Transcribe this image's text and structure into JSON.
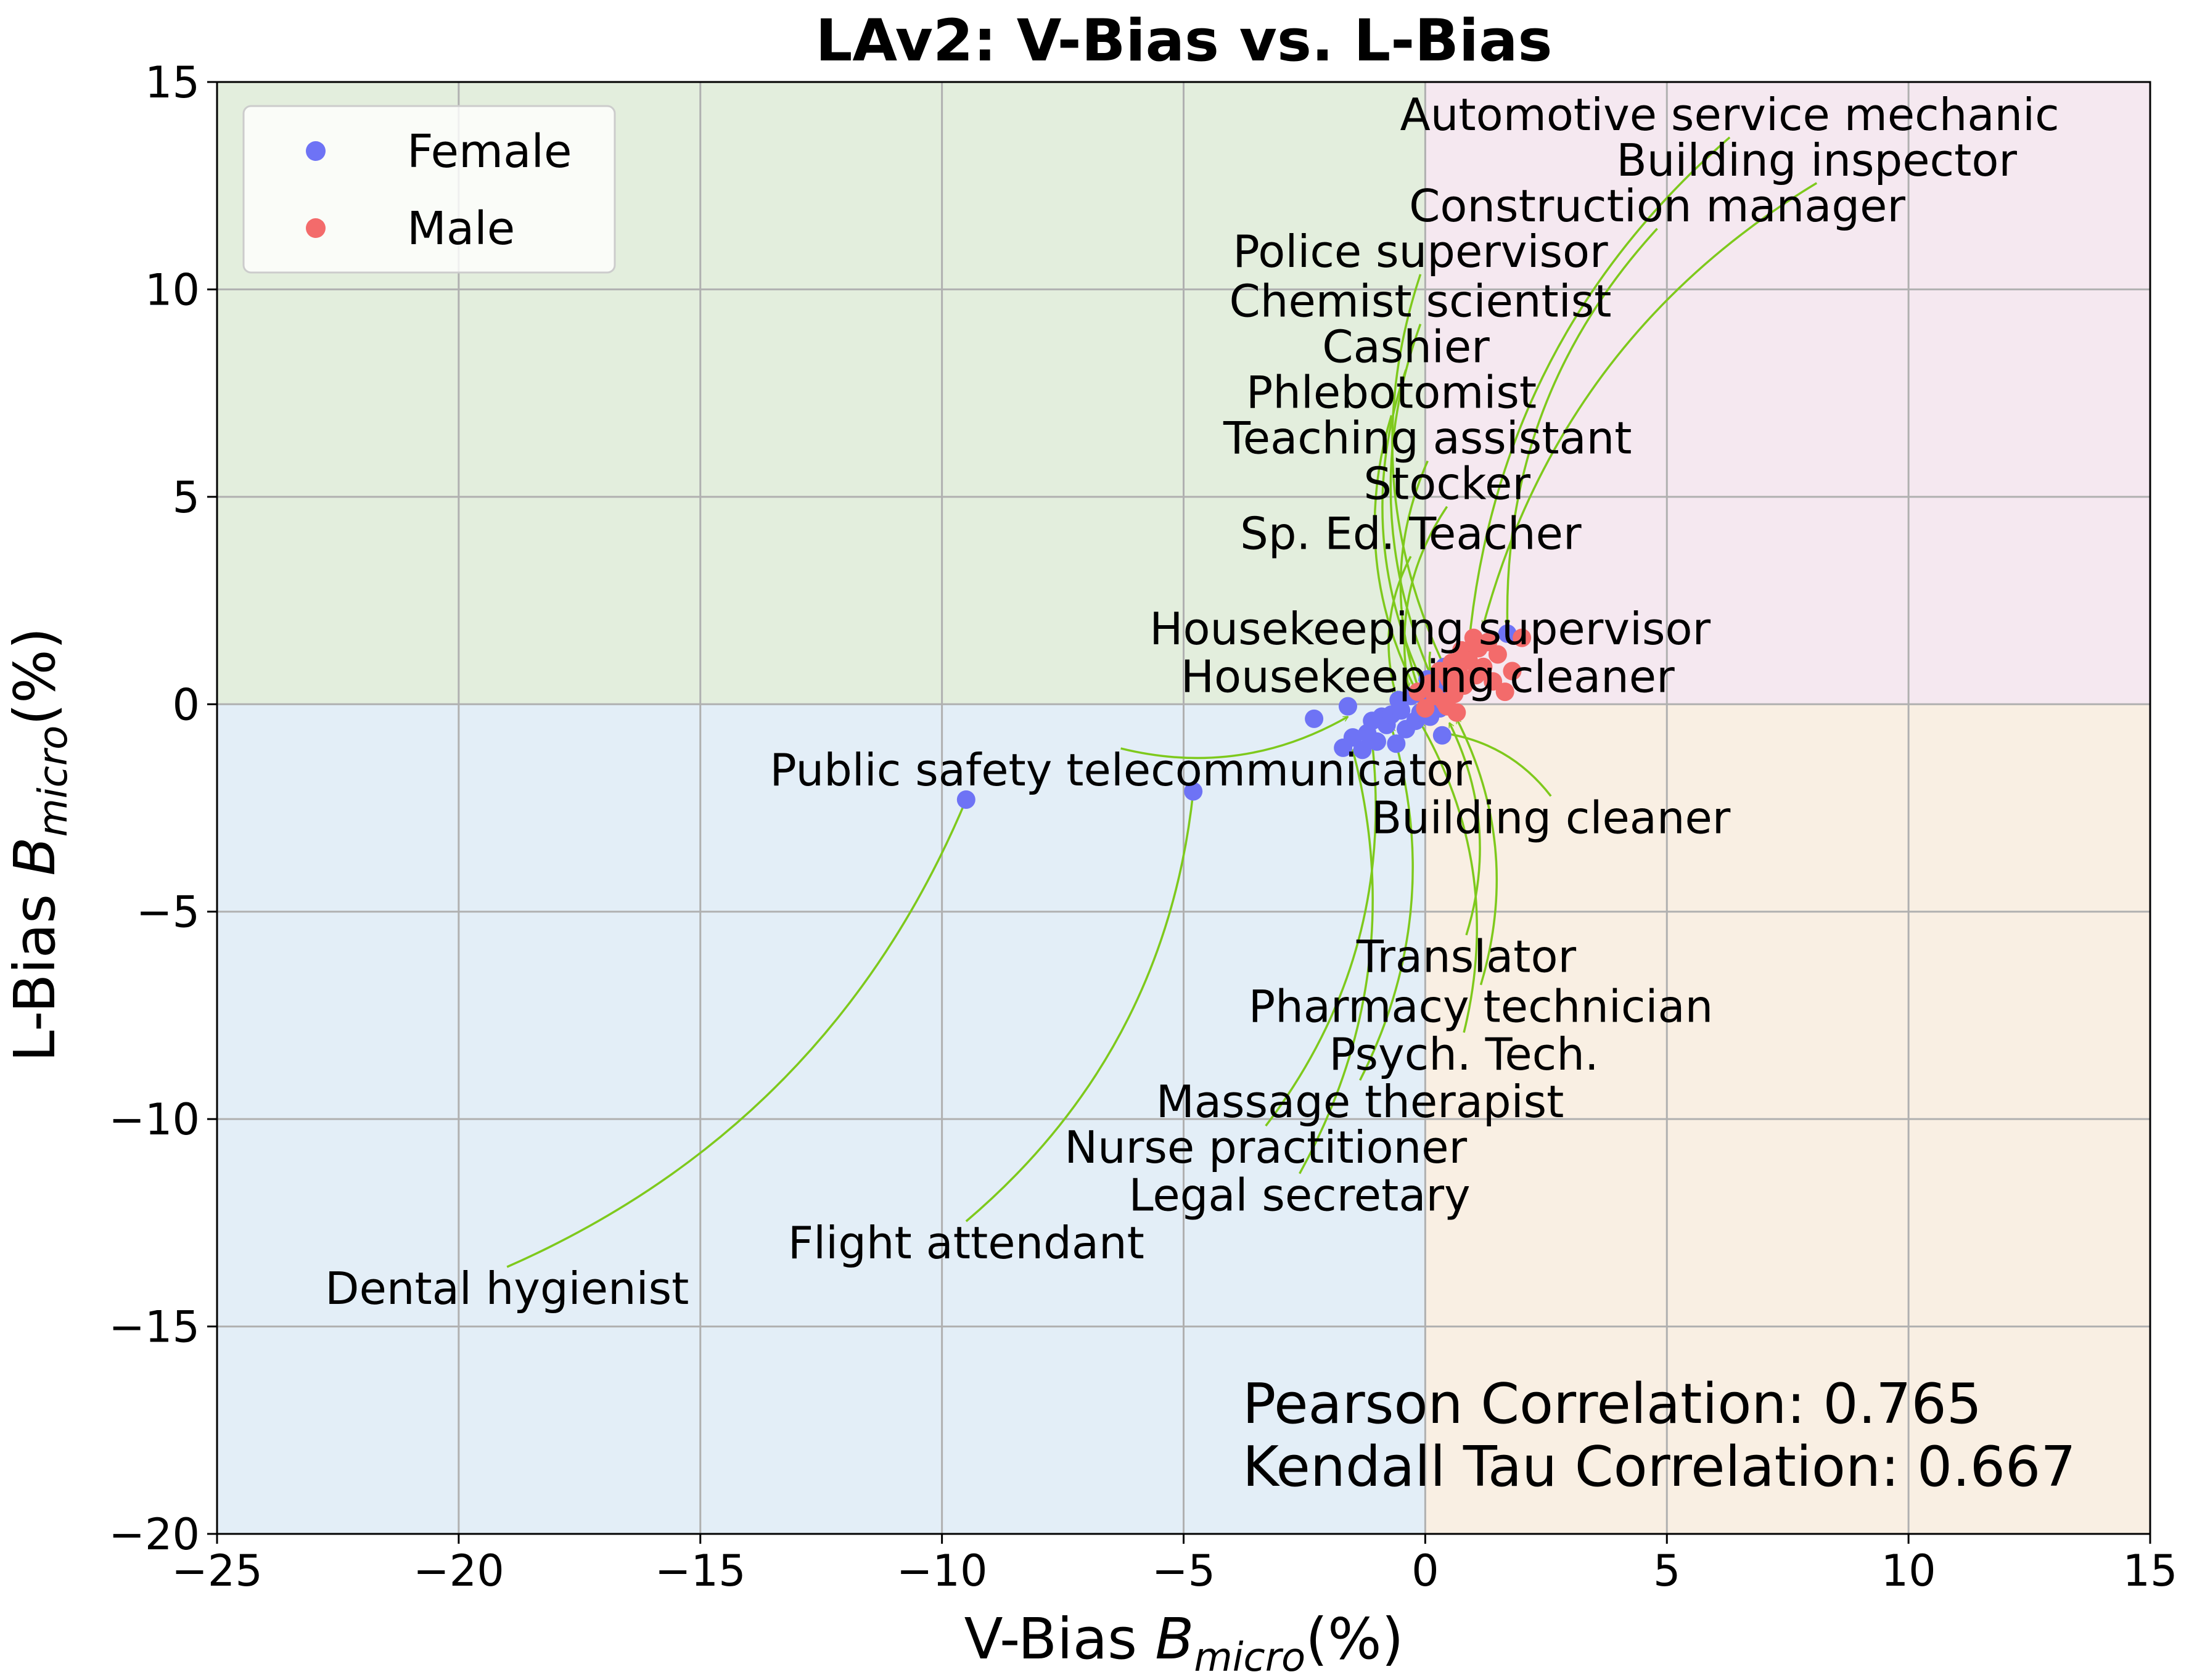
{
  "chart_data": {
    "type": "scatter",
    "title": "LAv2: V-Bias vs. L-Bias",
    "xlabel": "V-Bias",
    "xlabel_math": "B",
    "xlabel_sub": "micro",
    "xlabel_unit": "(%)",
    "ylabel": "L-Bias",
    "ylabel_math": "B",
    "ylabel_sub": "micro",
    "ylabel_unit": "(%)",
    "xlim": [
      -25,
      15
    ],
    "ylim": [
      -20,
      15
    ],
    "xticks": [
      -25,
      -20,
      -15,
      -10,
      -5,
      0,
      5,
      10,
      15
    ],
    "yticks": [
      -20,
      -15,
      -10,
      -5,
      0,
      5,
      10,
      15
    ],
    "xtick_labels": [
      "−25",
      "−20",
      "−15",
      "−10",
      "−5",
      "0",
      "5",
      "10",
      "15"
    ],
    "ytick_labels": [
      "−20",
      "−15",
      "−10",
      "−5",
      "0",
      "5",
      "10",
      "15"
    ],
    "grid": true,
    "legend_position": "top-left",
    "quadrant_colors": {
      "top_left": "#e3eedd",
      "top_right": "#f5e8f0",
      "bottom_left": "#e3eef7",
      "bottom_right": "#f9efe3"
    },
    "arrow_color": "#7ec91c",
    "series": [
      {
        "name": "Female",
        "color": "#6e73f5",
        "points": [
          [
            -9.5,
            -2.3
          ],
          [
            -4.8,
            -2.1
          ],
          [
            -2.3,
            -0.35
          ],
          [
            -1.6,
            -0.05
          ],
          [
            -1.7,
            -1.05
          ],
          [
            -1.5,
            -0.8
          ],
          [
            -1.3,
            -1.1
          ],
          [
            -1.2,
            -0.7
          ],
          [
            -1.0,
            -0.9
          ],
          [
            -0.9,
            -0.3
          ],
          [
            -0.8,
            -0.5
          ],
          [
            -0.7,
            -0.25
          ],
          [
            -0.6,
            -0.95
          ],
          [
            -0.5,
            -0.15
          ],
          [
            -0.4,
            -0.6
          ],
          [
            -0.3,
            0.2
          ],
          [
            -0.2,
            -0.4
          ],
          [
            -0.1,
            -0.2
          ],
          [
            0.0,
            0.15
          ],
          [
            0.1,
            -0.3
          ],
          [
            0.2,
            0.5
          ],
          [
            0.3,
            -0.1
          ],
          [
            0.4,
            0.9
          ],
          [
            0.5,
            0.35
          ],
          [
            0.6,
            0.7
          ],
          [
            0.35,
            -0.75
          ],
          [
            1.7,
            1.7
          ],
          [
            -1.1,
            -0.4
          ],
          [
            -0.55,
            0.1
          ],
          [
            0.05,
            0.6
          ]
        ]
      },
      {
        "name": "Male",
        "color": "#f36b6b",
        "points": [
          [
            -0.15,
            0.3
          ],
          [
            0.0,
            -0.1
          ],
          [
            0.1,
            0.5
          ],
          [
            0.2,
            0.2
          ],
          [
            0.3,
            0.8
          ],
          [
            0.4,
            0.05
          ],
          [
            0.5,
            0.6
          ],
          [
            0.55,
            1.0
          ],
          [
            0.6,
            0.25
          ],
          [
            0.7,
            0.75
          ],
          [
            0.75,
            1.3
          ],
          [
            0.8,
            0.45
          ],
          [
            0.9,
            1.05
          ],
          [
            1.0,
            1.6
          ],
          [
            1.05,
            0.7
          ],
          [
            1.1,
            1.35
          ],
          [
            1.2,
            0.9
          ],
          [
            1.3,
            1.5
          ],
          [
            1.4,
            0.55
          ],
          [
            1.5,
            1.2
          ],
          [
            1.65,
            0.3
          ],
          [
            1.8,
            0.8
          ],
          [
            2.0,
            1.6
          ],
          [
            0.65,
            -0.2
          ],
          [
            0.45,
            -0.05
          ]
        ]
      }
    ],
    "annotations": [
      {
        "text": "Automotive service mechanic",
        "text_xy": [
          6.3,
          14.2
        ],
        "point": [
          0.9,
          1.4
        ],
        "rad": 0.2
      },
      {
        "text": "Building inspector",
        "text_xy": [
          8.1,
          13.1
        ],
        "point": [
          1.2,
          1.9
        ],
        "rad": 0.2
      },
      {
        "text": "Construction manager",
        "text_xy": [
          4.8,
          12.0
        ],
        "point": [
          1.7,
          1.9
        ],
        "rad": 0.2
      },
      {
        "text": "Police supervisor",
        "text_xy": [
          -0.1,
          10.9
        ],
        "point": [
          0.4,
          0.9
        ],
        "rad": 0.2
      },
      {
        "text": "Chemist scientist",
        "text_xy": [
          -0.1,
          9.7
        ],
        "point": [
          0.15,
          0.6
        ],
        "rad": 0.2
      },
      {
        "text": "Cashier",
        "text_xy": [
          -0.4,
          8.6
        ],
        "point": [
          -0.05,
          0.5
        ],
        "rad": 0.2
      },
      {
        "text": "Phlebotomist",
        "text_xy": [
          -0.7,
          7.5
        ],
        "point": [
          -0.2,
          0.35
        ],
        "rad": 0.2
      },
      {
        "text": "Teaching assistant",
        "text_xy": [
          0.05,
          6.4
        ],
        "point": [
          -0.1,
          0.25
        ],
        "rad": 0.2
      },
      {
        "text": "Stocker",
        "text_xy": [
          0.45,
          5.3
        ],
        "point": [
          -0.35,
          0.4
        ],
        "rad": 0.2
      },
      {
        "text": "Sp. Ed. Teacher",
        "text_xy": [
          -0.3,
          4.1
        ],
        "point": [
          -0.6,
          0.2
        ],
        "rad": 0.2
      },
      {
        "text": "Housekeeping supervisor",
        "text_xy": [
          0.1,
          1.8
        ],
        "point": [
          0.3,
          0.3
        ],
        "rad": 0.2
      },
      {
        "text": "Housekeeping cleaner",
        "text_xy": [
          0.05,
          0.65
        ],
        "point": [
          0.2,
          0.1
        ],
        "rad": 0.2
      },
      {
        "text": "Public safety telecommunicator",
        "text_xy": [
          -6.3,
          -1.6
        ],
        "point": [
          -1.6,
          -0.3
        ],
        "rad": 0.2
      },
      {
        "text": "Building cleaner",
        "text_xy": [
          2.6,
          -2.75
        ],
        "point": [
          0.4,
          -0.7
        ],
        "rad": 0.2
      },
      {
        "text": "Translator",
        "text_xy": [
          0.85,
          -6.1
        ],
        "point": [
          0.5,
          -0.45
        ],
        "rad": 0.2
      },
      {
        "text": "Pharmacy technician",
        "text_xy": [
          1.15,
          -7.3
        ],
        "point": [
          0.65,
          -0.35
        ],
        "rad": 0.2
      },
      {
        "text": "Psych. Tech.",
        "text_xy": [
          0.8,
          -8.45
        ],
        "point": [
          -0.1,
          -0.45
        ],
        "rad": 0.2
      },
      {
        "text": "Massage therapist",
        "text_xy": [
          -1.35,
          -9.6
        ],
        "point": [
          -0.7,
          -0.55
        ],
        "rad": 0.2
      },
      {
        "text": "Nurse practitioner",
        "text_xy": [
          -3.3,
          -10.7
        ],
        "point": [
          -1.1,
          -0.9
        ],
        "rad": 0.2
      },
      {
        "text": "Legal secretary",
        "text_xy": [
          -2.6,
          -11.85
        ],
        "point": [
          -1.5,
          -1.1
        ],
        "rad": 0.2
      },
      {
        "text": "Flight attendant",
        "text_xy": [
          -9.5,
          -13.0
        ],
        "point": [
          -4.8,
          -2.1
        ],
        "rad": 0.2
      },
      {
        "text": "Dental hygienist",
        "text_xy": [
          -19.0,
          -14.1
        ],
        "point": [
          -9.5,
          -2.3
        ],
        "rad": 0.2
      }
    ],
    "correlations": {
      "pearson": "Pearson Correlation: 0.765",
      "kendall": "Kendall Tau Correlation: 0.667"
    }
  }
}
